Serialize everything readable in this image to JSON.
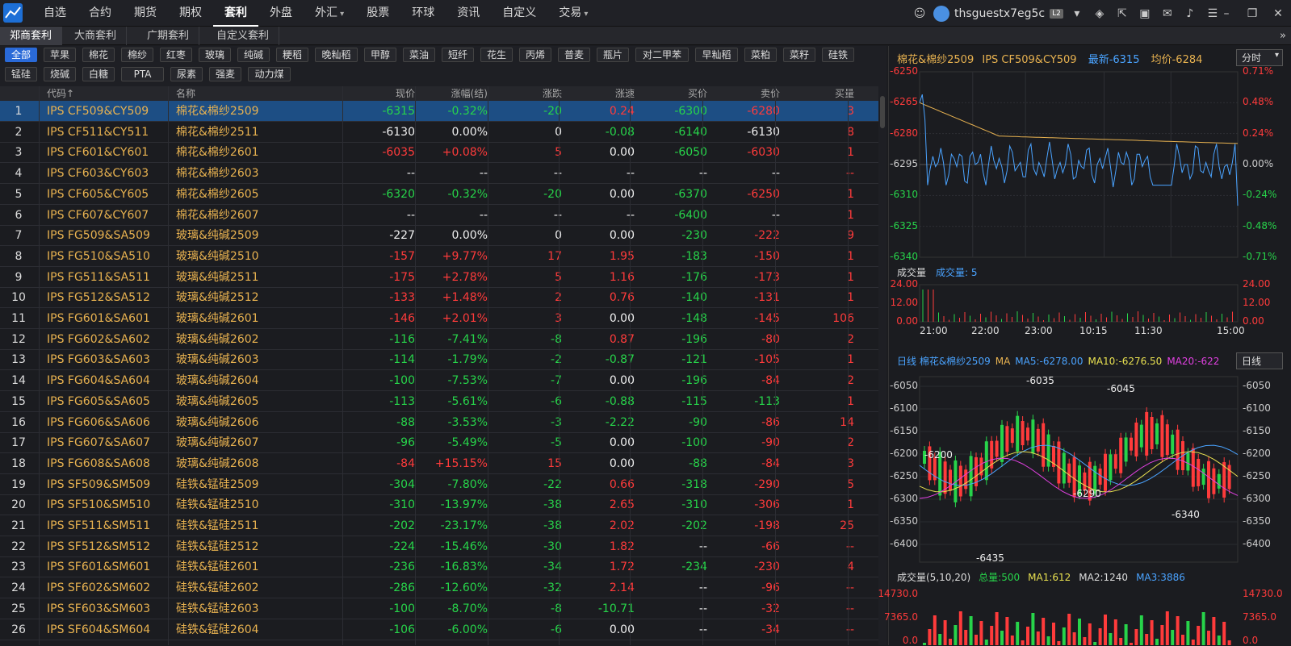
{
  "nav": {
    "items": [
      "自选",
      "合约",
      "期货",
      "期权",
      "套利",
      "外盘",
      "外汇",
      "股票",
      "环球",
      "资讯",
      "自定义",
      "交易"
    ],
    "active": 4
  },
  "user": {
    "name": "thsguestx7eg5c",
    "level": "L2"
  },
  "tabs": {
    "items": [
      "郑商套利",
      "大商套利",
      "广期套利",
      "自定义套利"
    ],
    "active": 0
  },
  "filters": {
    "row1": [
      "全部",
      "苹果",
      "棉花",
      "棉纱",
      "红枣",
      "玻璃",
      "纯碱",
      "粳稻",
      "晚籼稻",
      "甲醇",
      "菜油",
      "短纤",
      "花生",
      "丙烯",
      "普麦",
      "瓶片",
      "对二甲苯",
      "早籼稻",
      "菜粕",
      "菜籽",
      "硅铁"
    ],
    "row2": [
      "锰硅",
      "烧碱",
      "白糖",
      "PTA",
      "尿素",
      "强麦",
      "动力煤"
    ],
    "active": "全部"
  },
  "table": {
    "headers": [
      "",
      "代码↑",
      "名称",
      "现价",
      "涨幅(结)",
      "涨跌",
      "涨速",
      "买价",
      "卖价",
      "买量"
    ],
    "rows": [
      [
        "1",
        "IPS CF509&CY509",
        "棉花&棉纱2509",
        "-6315",
        "-0.32%",
        "-20",
        "0.24",
        "-6300",
        "-6280",
        "3"
      ],
      [
        "2",
        "IPS CF511&CY511",
        "棉花&棉纱2511",
        "-6130",
        "0.00%",
        "0",
        "-0.08",
        "-6140",
        "-6130",
        "8"
      ],
      [
        "3",
        "IPS CF601&CY601",
        "棉花&棉纱2601",
        "-6035",
        "+0.08%",
        "5",
        "0.00",
        "-6050",
        "-6030",
        "1"
      ],
      [
        "4",
        "IPS CF603&CY603",
        "棉花&棉纱2603",
        "--",
        "--",
        "--",
        "--",
        "--",
        "--",
        "--"
      ],
      [
        "5",
        "IPS CF605&CY605",
        "棉花&棉纱2605",
        "-6320",
        "-0.32%",
        "-20",
        "0.00",
        "-6370",
        "-6250",
        "1"
      ],
      [
        "6",
        "IPS CF607&CY607",
        "棉花&棉纱2607",
        "--",
        "--",
        "--",
        "--",
        "-6400",
        "--",
        "1"
      ],
      [
        "7",
        "IPS FG509&SA509",
        "玻璃&纯碱2509",
        "-227",
        "0.00%",
        "0",
        "0.00",
        "-230",
        "-222",
        "9"
      ],
      [
        "8",
        "IPS FG510&SA510",
        "玻璃&纯碱2510",
        "-157",
        "+9.77%",
        "17",
        "1.95",
        "-183",
        "-150",
        "1"
      ],
      [
        "9",
        "IPS FG511&SA511",
        "玻璃&纯碱2511",
        "-175",
        "+2.78%",
        "5",
        "1.16",
        "-176",
        "-173",
        "1"
      ],
      [
        "10",
        "IPS FG512&SA512",
        "玻璃&纯碱2512",
        "-133",
        "+1.48%",
        "2",
        "0.76",
        "-140",
        "-131",
        "1"
      ],
      [
        "11",
        "IPS FG601&SA601",
        "玻璃&纯碱2601",
        "-146",
        "+2.01%",
        "3",
        "0.00",
        "-148",
        "-145",
        "106"
      ],
      [
        "12",
        "IPS FG602&SA602",
        "玻璃&纯碱2602",
        "-116",
        "-7.41%",
        "-8",
        "0.87",
        "-196",
        "-80",
        "2"
      ],
      [
        "13",
        "IPS FG603&SA603",
        "玻璃&纯碱2603",
        "-114",
        "-1.79%",
        "-2",
        "-0.87",
        "-121",
        "-105",
        "1"
      ],
      [
        "14",
        "IPS FG604&SA604",
        "玻璃&纯碱2604",
        "-100",
        "-7.53%",
        "-7",
        "0.00",
        "-196",
        "-84",
        "2"
      ],
      [
        "15",
        "IPS FG605&SA605",
        "玻璃&纯碱2605",
        "-113",
        "-5.61%",
        "-6",
        "-0.88",
        "-115",
        "-113",
        "1"
      ],
      [
        "16",
        "IPS FG606&SA606",
        "玻璃&纯碱2606",
        "-88",
        "-3.53%",
        "-3",
        "-2.22",
        "-90",
        "-86",
        "14"
      ],
      [
        "17",
        "IPS FG607&SA607",
        "玻璃&纯碱2607",
        "-96",
        "-5.49%",
        "-5",
        "0.00",
        "-100",
        "-90",
        "2"
      ],
      [
        "18",
        "IPS FG608&SA608",
        "玻璃&纯碱2608",
        "-84",
        "+15.15%",
        "15",
        "0.00",
        "-88",
        "-84",
        "3"
      ],
      [
        "19",
        "IPS SF509&SM509",
        "硅铁&锰硅2509",
        "-304",
        "-7.80%",
        "-22",
        "0.66",
        "-318",
        "-290",
        "5"
      ],
      [
        "20",
        "IPS SF510&SM510",
        "硅铁&锰硅2510",
        "-310",
        "-13.97%",
        "-38",
        "2.65",
        "-310",
        "-306",
        "1"
      ],
      [
        "21",
        "IPS SF511&SM511",
        "硅铁&锰硅2511",
        "-202",
        "-23.17%",
        "-38",
        "2.02",
        "-202",
        "-198",
        "25"
      ],
      [
        "22",
        "IPS SF512&SM512",
        "硅铁&锰硅2512",
        "-224",
        "-15.46%",
        "-30",
        "1.82",
        "--",
        "-66",
        "--"
      ],
      [
        "23",
        "IPS SF601&SM601",
        "硅铁&锰硅2601",
        "-236",
        "-16.83%",
        "-34",
        "1.72",
        "-234",
        "-230",
        "4"
      ],
      [
        "24",
        "IPS SF602&SM602",
        "硅铁&锰硅2602",
        "-286",
        "-12.60%",
        "-32",
        "2.14",
        "--",
        "-96",
        "--"
      ],
      [
        "25",
        "IPS SF603&SM603",
        "硅铁&锰硅2603",
        "-100",
        "-8.70%",
        "-8",
        "-10.71",
        "--",
        "-32",
        "--"
      ],
      [
        "26",
        "IPS SF604&SM604",
        "硅铁&锰硅2604",
        "-106",
        "-6.00%",
        "-6",
        "0.00",
        "--",
        "-34",
        "--"
      ]
    ],
    "colors": [
      [
        "",
        "gold",
        "gold",
        "green",
        "green",
        "green",
        "red",
        "green",
        "red",
        "red"
      ],
      [
        "",
        "gold",
        "gold",
        "white",
        "white",
        "white",
        "green",
        "green",
        "white",
        "red"
      ],
      [
        "",
        "gold",
        "gold",
        "red",
        "red",
        "red",
        "white",
        "green",
        "red",
        "red"
      ],
      [
        "",
        "gold",
        "gold",
        "white",
        "white",
        "white",
        "white",
        "white",
        "white",
        "red"
      ],
      [
        "",
        "gold",
        "gold",
        "green",
        "green",
        "green",
        "white",
        "green",
        "red",
        "red"
      ],
      [
        "",
        "gold",
        "gold",
        "white",
        "white",
        "white",
        "white",
        "green",
        "white",
        "red"
      ],
      [
        "",
        "gold",
        "gold",
        "white",
        "white",
        "white",
        "white",
        "green",
        "red",
        "red"
      ],
      [
        "",
        "gold",
        "gold",
        "red",
        "red",
        "red",
        "red",
        "green",
        "red",
        "red"
      ],
      [
        "",
        "gold",
        "gold",
        "red",
        "red",
        "red",
        "red",
        "green",
        "red",
        "red"
      ],
      [
        "",
        "gold",
        "gold",
        "red",
        "red",
        "red",
        "red",
        "green",
        "red",
        "red"
      ],
      [
        "",
        "gold",
        "gold",
        "red",
        "red",
        "red",
        "white",
        "green",
        "red",
        "red"
      ],
      [
        "",
        "gold",
        "gold",
        "green",
        "green",
        "green",
        "red",
        "green",
        "red",
        "red"
      ],
      [
        "",
        "gold",
        "gold",
        "green",
        "green",
        "green",
        "green",
        "green",
        "red",
        "red"
      ],
      [
        "",
        "gold",
        "gold",
        "green",
        "green",
        "green",
        "white",
        "green",
        "red",
        "red"
      ],
      [
        "",
        "gold",
        "gold",
        "green",
        "green",
        "green",
        "green",
        "green",
        "green",
        "red"
      ],
      [
        "",
        "gold",
        "gold",
        "green",
        "green",
        "green",
        "green",
        "green",
        "red",
        "red"
      ],
      [
        "",
        "gold",
        "gold",
        "green",
        "green",
        "green",
        "white",
        "green",
        "red",
        "red"
      ],
      [
        "",
        "gold",
        "gold",
        "red",
        "red",
        "red",
        "white",
        "green",
        "red",
        "red"
      ],
      [
        "",
        "gold",
        "gold",
        "green",
        "green",
        "green",
        "red",
        "green",
        "red",
        "red"
      ],
      [
        "",
        "gold",
        "gold",
        "green",
        "green",
        "green",
        "red",
        "green",
        "red",
        "red"
      ],
      [
        "",
        "gold",
        "gold",
        "green",
        "green",
        "green",
        "red",
        "green",
        "red",
        "red"
      ],
      [
        "",
        "gold",
        "gold",
        "green",
        "green",
        "green",
        "red",
        "white",
        "red",
        "red"
      ],
      [
        "",
        "gold",
        "gold",
        "green",
        "green",
        "green",
        "red",
        "green",
        "red",
        "red"
      ],
      [
        "",
        "gold",
        "gold",
        "green",
        "green",
        "green",
        "red",
        "white",
        "red",
        "red"
      ],
      [
        "",
        "gold",
        "gold",
        "green",
        "green",
        "green",
        "green",
        "white",
        "red",
        "red"
      ],
      [
        "",
        "gold",
        "gold",
        "green",
        "green",
        "green",
        "white",
        "white",
        "red",
        "red"
      ]
    ]
  },
  "right": {
    "title": {
      "name": "棉花&棉纱2509",
      "code": "IPS CF509&CY509",
      "latest": "最新-6315",
      "avg": "均价-6284"
    },
    "period": "分时",
    "intraday_axis_left": [
      "-6250",
      "-6265",
      "-6280",
      "-6295",
      "-6310",
      "-6325",
      "-6340"
    ],
    "intraday_axis_right": [
      "0.71%",
      "0.48%",
      "0.24%",
      "0.00%",
      "-0.24%",
      "-0.48%",
      "-0.71%"
    ],
    "vol_title": "成交量",
    "vol_label": "成交量: 5",
    "vol_axis": [
      "24.00",
      "12.00",
      "0.00"
    ],
    "time_axis": [
      "21:00",
      "22:00",
      "23:00",
      "10:15",
      "11:30",
      "15:00"
    ],
    "daily_title": {
      "prefix": "日线 棉花&棉纱2509",
      "ma": "MA",
      "ma5": "MA5:-6278.00",
      "ma10": "MA10:-6276.50",
      "ma20": "MA20:-622"
    },
    "daily_period": "日线",
    "daily_axis": [
      "-6050",
      "-6100",
      "-6150",
      "-6200",
      "-6250",
      "-6300",
      "-6350",
      "-6400"
    ],
    "daily_marks": [
      "-6035",
      "-6045",
      "-6200",
      "-6290",
      "-6340",
      "-6435"
    ],
    "dvol_title": "成交量(5,10,20)",
    "dvol_total": "总量:500",
    "dvol_ma1": "MA1:612",
    "dvol_ma2": "MA2:1240",
    "dvol_ma3": "MA3:3886",
    "dvol_axis": [
      "14730.0",
      "7365.0",
      "0.0"
    ],
    "colors": {
      "up": "#ff3b3b",
      "down": "#27d44a",
      "price": "#4aa3ff",
      "avg": "#e8b250",
      "ma5": "#4aa3ff",
      "ma10": "#e8e050",
      "ma20": "#e040e0"
    }
  }
}
